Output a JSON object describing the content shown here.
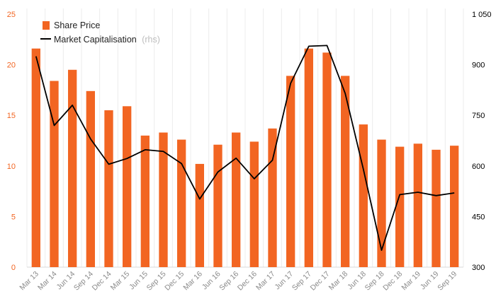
{
  "chart_data": {
    "type": "bar",
    "categories": [
      "Mar 13",
      "Mar 14",
      "Jun 14",
      "Sep 14",
      "Dec 14",
      "Mar 15",
      "Jun 15",
      "Sep 15",
      "Dec 15",
      "Mar 16",
      "Jun 16",
      "Sep 16",
      "Dec 16",
      "Mar 17",
      "Jun 17",
      "Sep 17",
      "Dec 17",
      "Mar 18",
      "Jun 18",
      "Sep 18",
      "Dec 18",
      "Mar 19",
      "Jun 19",
      "Sep 19"
    ],
    "series": [
      {
        "name": "Share Price",
        "kind": "bar",
        "axis": "left",
        "color": "#f26522",
        "values": [
          21.6,
          18.4,
          19.5,
          17.4,
          15.5,
          15.9,
          13.0,
          13.3,
          12.6,
          10.2,
          12.1,
          13.3,
          12.4,
          13.7,
          18.9,
          21.6,
          21.2,
          18.9,
          14.1,
          12.6,
          11.9,
          12.2,
          11.6,
          12.0
        ]
      },
      {
        "name": "Market Capitalisation",
        "name_suffix": "(rhs)",
        "kind": "line",
        "axis": "right",
        "color": "#000000",
        "values": [
          925,
          720,
          780,
          680,
          605,
          622,
          648,
          643,
          607,
          502,
          582,
          623,
          562,
          617,
          845,
          955,
          957,
          815,
          590,
          350,
          515,
          522,
          512,
          520
        ]
      }
    ],
    "y_left": {
      "min": 0,
      "max": 25,
      "ticks": [
        "0",
        "5",
        "10",
        "15",
        "20",
        "25"
      ],
      "color": "#f26522"
    },
    "y_right": {
      "min": 300,
      "max": 1050,
      "ticks": [
        "300",
        "450",
        "600",
        "750",
        "900",
        "1 050"
      ],
      "color": "#000000"
    },
    "grid": "vertical",
    "legend_position": "top-left"
  }
}
